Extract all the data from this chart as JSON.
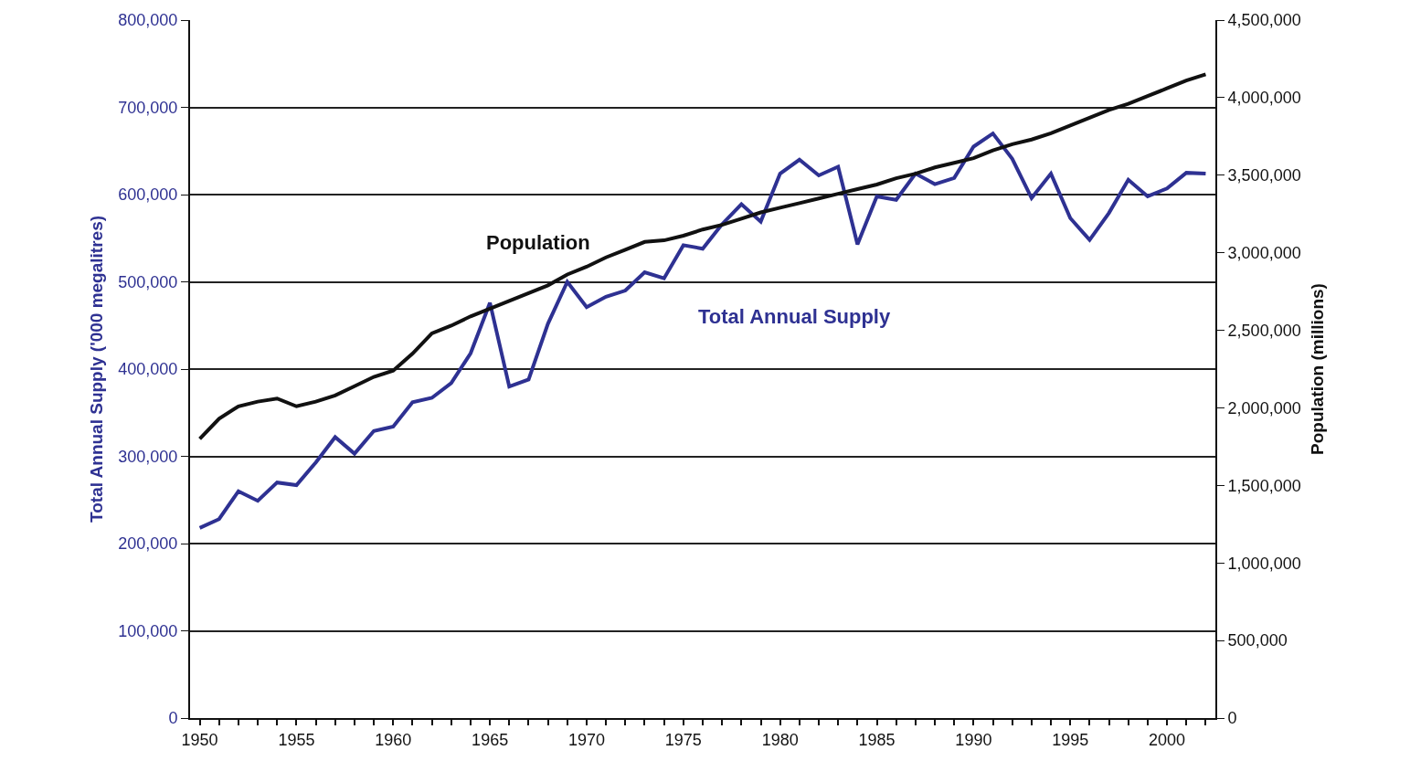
{
  "chart_data": {
    "type": "line",
    "xlabel": null,
    "ylabel": "Total Annual Supply ('000 megalitres)",
    "y2label": "Population (millions)",
    "x": [
      1950,
      1951,
      1952,
      1953,
      1954,
      1955,
      1956,
      1957,
      1958,
      1959,
      1960,
      1961,
      1962,
      1963,
      1964,
      1965,
      1966,
      1967,
      1968,
      1969,
      1970,
      1971,
      1972,
      1973,
      1974,
      1975,
      1976,
      1977,
      1978,
      1979,
      1980,
      1981,
      1982,
      1983,
      1984,
      1985,
      1986,
      1987,
      1988,
      1989,
      1990,
      1991,
      1992,
      1993,
      1994,
      1995,
      1996,
      1997,
      1998,
      1999,
      2000,
      2001,
      2002
    ],
    "series": [
      {
        "name": "Population",
        "color": "#111111",
        "axis": "y2",
        "values": [
          1800000,
          1930000,
          2010000,
          2040000,
          2060000,
          2010000,
          2040000,
          2080000,
          2140000,
          2200000,
          2240000,
          2350000,
          2480000,
          2530000,
          2590000,
          2640000,
          2690000,
          2740000,
          2790000,
          2860000,
          2910000,
          2970000,
          3020000,
          3070000,
          3080000,
          3110000,
          3150000,
          3180000,
          3220000,
          3260000,
          3290000,
          3320000,
          3350000,
          3380000,
          3410000,
          3440000,
          3480000,
          3510000,
          3550000,
          3580000,
          3610000,
          3660000,
          3700000,
          3730000,
          3770000,
          3820000,
          3870000,
          3920000,
          3960000,
          4010000,
          4060000,
          4110000,
          4150000
        ]
      },
      {
        "name": "Total Annual Supply",
        "color": "#2e3192",
        "axis": "y",
        "values": [
          218000,
          228000,
          260000,
          249000,
          270000,
          267000,
          293000,
          322000,
          303000,
          329000,
          334000,
          362000,
          367000,
          384000,
          418000,
          476000,
          380000,
          388000,
          452000,
          500000,
          471000,
          483000,
          490000,
          511000,
          504000,
          542000,
          538000,
          566000,
          589000,
          569000,
          624000,
          640000,
          622000,
          632000,
          543000,
          598000,
          594000,
          624000,
          612000,
          619000,
          655000,
          670000,
          641000,
          596000,
          624000,
          573000,
          548000,
          579000,
          617000,
          598000,
          607000,
          625000,
          624000
        ]
      }
    ],
    "xlim": [
      1949.5,
      2002.5
    ],
    "xticks": [
      1950,
      {
        "value": 1951,
        "label": null
      },
      {
        "value": 1952,
        "label": null
      },
      {
        "value": 1953,
        "label": null
      },
      {
        "value": 1954,
        "label": null
      },
      1955,
      {
        "value": 1956,
        "label": null
      },
      {
        "value": 1957,
        "label": null
      },
      {
        "value": 1958,
        "label": null
      },
      {
        "value": 1959,
        "label": null
      },
      1960,
      {
        "value": 1961,
        "label": null
      },
      {
        "value": 1962,
        "label": null
      },
      {
        "value": 1963,
        "label": null
      },
      {
        "value": 1964,
        "label": null
      },
      1965,
      {
        "value": 1966,
        "label": null
      },
      {
        "value": 1967,
        "label": null
      },
      {
        "value": 1968,
        "label": null
      },
      {
        "value": 1969,
        "label": null
      },
      1970,
      {
        "value": 1971,
        "label": null
      },
      {
        "value": 1972,
        "label": null
      },
      {
        "value": 1973,
        "label": null
      },
      {
        "value": 1974,
        "label": null
      },
      1975,
      {
        "value": 1976,
        "label": null
      },
      {
        "value": 1977,
        "label": null
      },
      {
        "value": 1978,
        "label": null
      },
      {
        "value": 1979,
        "label": null
      },
      1980,
      {
        "value": 1981,
        "label": null
      },
      {
        "value": 1982,
        "label": null
      },
      {
        "value": 1983,
        "label": null
      },
      {
        "value": 1984,
        "label": null
      },
      1985,
      {
        "value": 1986,
        "label": null
      },
      {
        "value": 1987,
        "label": null
      },
      {
        "value": 1988,
        "label": null
      },
      {
        "value": 1989,
        "label": null
      },
      1990,
      {
        "value": 1991,
        "label": null
      },
      {
        "value": 1992,
        "label": null
      },
      {
        "value": 1993,
        "label": null
      },
      {
        "value": 1994,
        "label": null
      },
      1995,
      {
        "value": 1996,
        "label": null
      },
      {
        "value": 1997,
        "label": null
      },
      {
        "value": 1998,
        "label": null
      },
      {
        "value": 1999,
        "label": null
      },
      2000,
      {
        "value": 2001,
        "label": null
      },
      {
        "value": 2002,
        "label": null
      }
    ],
    "ylim": [
      0,
      800000
    ],
    "yticks": [
      0,
      {
        "value": 100000,
        "label": "100,000"
      },
      {
        "value": 200000,
        "label": "200,000"
      },
      {
        "value": 300000,
        "label": "300,000"
      },
      {
        "value": 400000,
        "label": "400,000"
      },
      {
        "value": 500000,
        "label": "500,000"
      },
      {
        "value": 600000,
        "label": "600,000"
      },
      {
        "value": 700000,
        "label": "700,000"
      },
      {
        "value": 800000,
        "label": "800,000"
      }
    ],
    "y2lim": [
      0,
      4500000
    ],
    "y2ticks": [
      0,
      {
        "value": 500000,
        "label": "500,000"
      },
      {
        "value": 1000000,
        "label": "1,000,000"
      },
      {
        "value": 1500000,
        "label": "1,500,000"
      },
      {
        "value": 2000000,
        "label": "2,000,000"
      },
      {
        "value": 2500000,
        "label": "2,500,000"
      },
      {
        "value": 3000000,
        "label": "3,000,000"
      },
      {
        "value": 3500000,
        "label": "3,500,000"
      },
      {
        "value": 4000000,
        "label": "4,000,000"
      },
      {
        "value": 4500000,
        "label": "4,500,000"
      }
    ],
    "grid": "y",
    "legend": false,
    "marker": "none",
    "line_style": "solid"
  }
}
